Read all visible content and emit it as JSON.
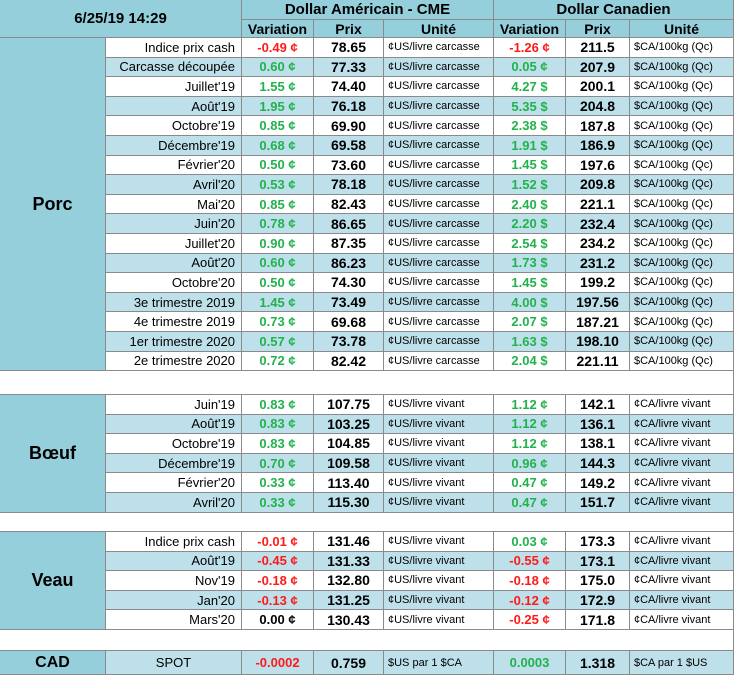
{
  "header": {
    "datetime": "6/25/19 14:29",
    "usd_title": "Dollar Américain - CME",
    "cad_title": "Dollar Canadien",
    "variation": "Variation",
    "prix": "Prix",
    "unite": "Unité"
  },
  "colors": {
    "header_bg": "#96cfdc",
    "row_alt": "#bde0ea",
    "negative": "#ff1a1a",
    "positive": "#22b24c"
  },
  "sections": [
    {
      "name": "Porc",
      "rows": [
        {
          "label": "Indice prix cash",
          "usd_var": "-0.49 ¢",
          "usd_sign": "neg",
          "usd_price": "78.65",
          "usd_unit": "¢US/livre carcasse",
          "cad_var": "-1.26 ¢",
          "cad_sign": "neg",
          "cad_price": "211.5",
          "cad_unit": "$CA/100kg (Qc)"
        },
        {
          "label": "Carcasse découpée",
          "usd_var": "0.60 ¢",
          "usd_sign": "pos",
          "usd_price": "77.33",
          "usd_unit": "¢US/livre carcasse",
          "cad_var": "0.05 ¢",
          "cad_sign": "pos",
          "cad_price": "207.9",
          "cad_unit": "$CA/100kg (Qc)"
        },
        {
          "label": "Juillet'19",
          "usd_var": "1.55 ¢",
          "usd_sign": "pos",
          "usd_price": "74.40",
          "usd_unit": "¢US/livre carcasse",
          "cad_var": "4.27 $",
          "cad_sign": "pos",
          "cad_price": "200.1",
          "cad_unit": "$CA/100kg (Qc)"
        },
        {
          "label": "Août'19",
          "usd_var": "1.95 ¢",
          "usd_sign": "pos",
          "usd_price": "76.18",
          "usd_unit": "¢US/livre carcasse",
          "cad_var": "5.35 $",
          "cad_sign": "pos",
          "cad_price": "204.8",
          "cad_unit": "$CA/100kg (Qc)"
        },
        {
          "label": "Octobre'19",
          "usd_var": "0.85 ¢",
          "usd_sign": "pos",
          "usd_price": "69.90",
          "usd_unit": "¢US/livre carcasse",
          "cad_var": "2.38 $",
          "cad_sign": "pos",
          "cad_price": "187.8",
          "cad_unit": "$CA/100kg (Qc)"
        },
        {
          "label": "Décembre'19",
          "usd_var": "0.68 ¢",
          "usd_sign": "pos",
          "usd_price": "69.58",
          "usd_unit": "¢US/livre carcasse",
          "cad_var": "1.91 $",
          "cad_sign": "pos",
          "cad_price": "186.9",
          "cad_unit": "$CA/100kg (Qc)"
        },
        {
          "label": "Février'20",
          "usd_var": "0.50 ¢",
          "usd_sign": "pos",
          "usd_price": "73.60",
          "usd_unit": "¢US/livre carcasse",
          "cad_var": "1.45 $",
          "cad_sign": "pos",
          "cad_price": "197.6",
          "cad_unit": "$CA/100kg (Qc)"
        },
        {
          "label": "Avril'20",
          "usd_var": "0.53 ¢",
          "usd_sign": "pos",
          "usd_price": "78.18",
          "usd_unit": "¢US/livre carcasse",
          "cad_var": "1.52 $",
          "cad_sign": "pos",
          "cad_price": "209.8",
          "cad_unit": "$CA/100kg (Qc)"
        },
        {
          "label": "Mai'20",
          "usd_var": "0.85 ¢",
          "usd_sign": "pos",
          "usd_price": "82.43",
          "usd_unit": "¢US/livre carcasse",
          "cad_var": "2.40 $",
          "cad_sign": "pos",
          "cad_price": "221.1",
          "cad_unit": "$CA/100kg (Qc)"
        },
        {
          "label": "Juin'20",
          "usd_var": "0.78 ¢",
          "usd_sign": "pos",
          "usd_price": "86.65",
          "usd_unit": "¢US/livre carcasse",
          "cad_var": "2.20 $",
          "cad_sign": "pos",
          "cad_price": "232.4",
          "cad_unit": "$CA/100kg (Qc)"
        },
        {
          "label": "Juillet'20",
          "usd_var": "0.90 ¢",
          "usd_sign": "pos",
          "usd_price": "87.35",
          "usd_unit": "¢US/livre carcasse",
          "cad_var": "2.54 $",
          "cad_sign": "pos",
          "cad_price": "234.2",
          "cad_unit": "$CA/100kg (Qc)"
        },
        {
          "label": "Août'20",
          "usd_var": "0.60 ¢",
          "usd_sign": "pos",
          "usd_price": "86.23",
          "usd_unit": "¢US/livre carcasse",
          "cad_var": "1.73 $",
          "cad_sign": "pos",
          "cad_price": "231.2",
          "cad_unit": "$CA/100kg (Qc)"
        },
        {
          "label": "Octobre'20",
          "usd_var": "0.50 ¢",
          "usd_sign": "pos",
          "usd_price": "74.30",
          "usd_unit": "¢US/livre carcasse",
          "cad_var": "1.45 $",
          "cad_sign": "pos",
          "cad_price": "199.2",
          "cad_unit": "$CA/100kg (Qc)"
        },
        {
          "label": "3e trimestre 2019",
          "usd_var": "1.45 ¢",
          "usd_sign": "pos",
          "usd_price": "73.49",
          "usd_unit": "¢US/livre carcasse",
          "cad_var": "4.00 $",
          "cad_sign": "pos",
          "cad_price": "197.56",
          "cad_unit": "$CA/100kg (Qc)"
        },
        {
          "label": "4e trimestre 2019",
          "usd_var": "0.73 ¢",
          "usd_sign": "pos",
          "usd_price": "69.68",
          "usd_unit": "¢US/livre carcasse",
          "cad_var": "2.07 $",
          "cad_sign": "pos",
          "cad_price": "187.21",
          "cad_unit": "$CA/100kg (Qc)"
        },
        {
          "label": "1er trimestre 2020",
          "usd_var": "0.57 ¢",
          "usd_sign": "pos",
          "usd_price": "73.78",
          "usd_unit": "¢US/livre carcasse",
          "cad_var": "1.63 $",
          "cad_sign": "pos",
          "cad_price": "198.10",
          "cad_unit": "$CA/100kg (Qc)"
        },
        {
          "label": "2e trimestre 2020",
          "usd_var": "0.72 ¢",
          "usd_sign": "pos",
          "usd_price": "82.42",
          "usd_unit": "¢US/livre carcasse",
          "cad_var": "2.04 $",
          "cad_sign": "pos",
          "cad_price": "221.11",
          "cad_unit": "$CA/100kg (Qc)"
        }
      ]
    },
    {
      "name": "Bœuf",
      "rows": [
        {
          "label": "Juin'19",
          "usd_var": "0.83 ¢",
          "usd_sign": "pos",
          "usd_price": "107.75",
          "usd_unit": "¢US/livre vivant",
          "cad_var": "1.12 ¢",
          "cad_sign": "pos",
          "cad_price": "142.1",
          "cad_unit": "¢CA/livre vivant"
        },
        {
          "label": "Août'19",
          "usd_var": "0.83 ¢",
          "usd_sign": "pos",
          "usd_price": "103.25",
          "usd_unit": "¢US/livre vivant",
          "cad_var": "1.12 ¢",
          "cad_sign": "pos",
          "cad_price": "136.1",
          "cad_unit": "¢CA/livre vivant"
        },
        {
          "label": "Octobre'19",
          "usd_var": "0.83 ¢",
          "usd_sign": "pos",
          "usd_price": "104.85",
          "usd_unit": "¢US/livre vivant",
          "cad_var": "1.12 ¢",
          "cad_sign": "pos",
          "cad_price": "138.1",
          "cad_unit": "¢CA/livre vivant"
        },
        {
          "label": "Décembre'19",
          "usd_var": "0.70 ¢",
          "usd_sign": "pos",
          "usd_price": "109.58",
          "usd_unit": "¢US/livre vivant",
          "cad_var": "0.96 ¢",
          "cad_sign": "pos",
          "cad_price": "144.3",
          "cad_unit": "¢CA/livre vivant"
        },
        {
          "label": "Février'20",
          "usd_var": "0.33 ¢",
          "usd_sign": "pos",
          "usd_price": "113.40",
          "usd_unit": "¢US/livre vivant",
          "cad_var": "0.47 ¢",
          "cad_sign": "pos",
          "cad_price": "149.2",
          "cad_unit": "¢CA/livre vivant"
        },
        {
          "label": "Avril'20",
          "usd_var": "0.33 ¢",
          "usd_sign": "pos",
          "usd_price": "115.30",
          "usd_unit": "¢US/livre vivant",
          "cad_var": "0.47 ¢",
          "cad_sign": "pos",
          "cad_price": "151.7",
          "cad_unit": "¢CA/livre vivant"
        }
      ]
    },
    {
      "name": "Veau",
      "rows": [
        {
          "label": "Indice prix cash",
          "usd_var": "-0.01 ¢",
          "usd_sign": "neg",
          "usd_price": "131.46",
          "usd_unit": "¢US/livre vivant",
          "cad_var": "0.03 ¢",
          "cad_sign": "pos",
          "cad_price": "173.3",
          "cad_unit": "¢CA/livre vivant"
        },
        {
          "label": "Août'19",
          "usd_var": "-0.45 ¢",
          "usd_sign": "neg",
          "usd_price": "131.33",
          "usd_unit": "¢US/livre vivant",
          "cad_var": "-0.55 ¢",
          "cad_sign": "neg",
          "cad_price": "173.1",
          "cad_unit": "¢CA/livre vivant"
        },
        {
          "label": "Nov'19",
          "usd_var": "-0.18 ¢",
          "usd_sign": "neg",
          "usd_price": "132.80",
          "usd_unit": "¢US/livre vivant",
          "cad_var": "-0.18 ¢",
          "cad_sign": "neg",
          "cad_price": "175.0",
          "cad_unit": "¢CA/livre vivant"
        },
        {
          "label": "Jan'20",
          "usd_var": "-0.13 ¢",
          "usd_sign": "neg",
          "usd_price": "131.25",
          "usd_unit": "¢US/livre vivant",
          "cad_var": "-0.12 ¢",
          "cad_sign": "neg",
          "cad_price": "172.9",
          "cad_unit": "¢CA/livre vivant"
        },
        {
          "label": "Mars'20",
          "usd_var": "0.00 ¢",
          "usd_sign": "zero",
          "usd_price": "130.43",
          "usd_unit": "¢US/livre vivant",
          "cad_var": "-0.25 ¢",
          "cad_sign": "neg",
          "cad_price": "171.8",
          "cad_unit": "¢CA/livre vivant"
        }
      ]
    }
  ],
  "cad": {
    "name": "CAD",
    "label": "SPOT",
    "usd_var": "-0.0002",
    "usd_sign": "neg",
    "usd_price": "0.759",
    "usd_unit": "$US par 1 $CA",
    "cad_var": "0.0003",
    "cad_sign": "pos",
    "cad_price": "1.318",
    "cad_unit": "$CA par 1 $US"
  }
}
